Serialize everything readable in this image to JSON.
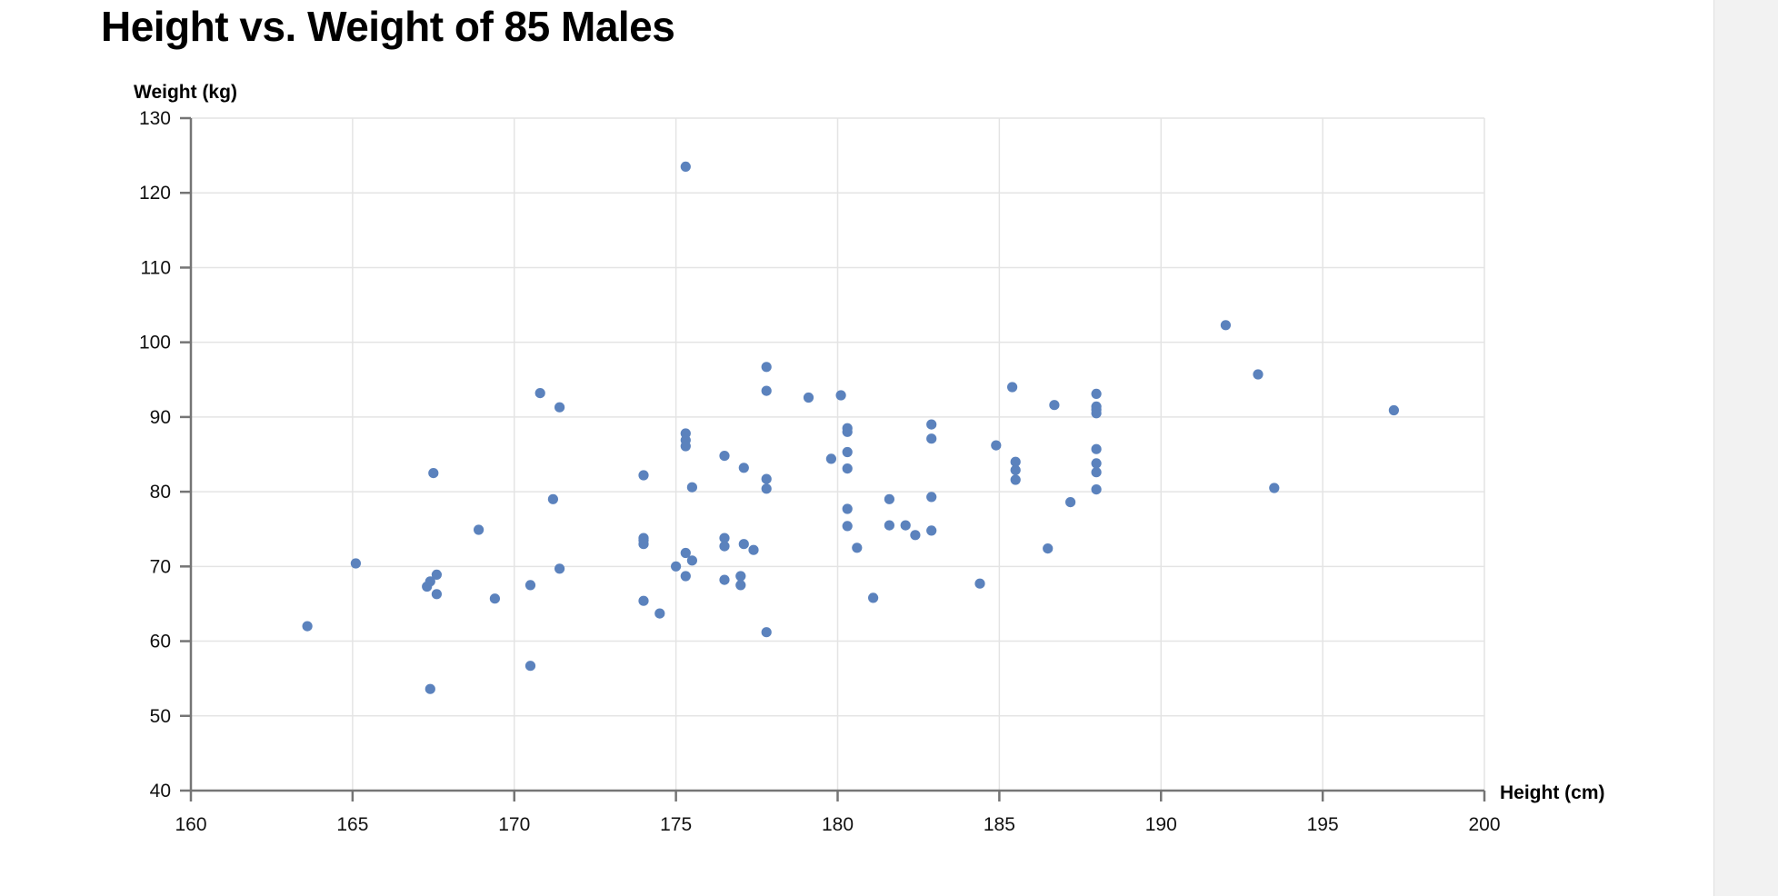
{
  "chart_data": {
    "type": "scatter",
    "title": "Height vs. Weight of 85 Males",
    "xlabel": "Height (cm)",
    "ylabel": "Weight (kg)",
    "xlim": [
      160,
      200
    ],
    "ylim": [
      40,
      130
    ],
    "x_ticks": [
      160,
      165,
      170,
      175,
      180,
      185,
      190,
      195,
      200
    ],
    "y_ticks": [
      40,
      50,
      60,
      70,
      80,
      90,
      100,
      110,
      120,
      130
    ],
    "grid": true,
    "legend": "none",
    "point_count": 85,
    "points": [
      [
        163.6,
        62.0
      ],
      [
        165.1,
        70.4
      ],
      [
        167.5,
        82.5
      ],
      [
        167.6,
        68.9
      ],
      [
        167.3,
        67.3
      ],
      [
        167.6,
        66.3
      ],
      [
        167.4,
        68.0
      ],
      [
        167.4,
        53.6
      ],
      [
        168.9,
        74.9
      ],
      [
        169.4,
        65.7
      ],
      [
        170.8,
        93.2
      ],
      [
        171.4,
        91.3
      ],
      [
        171.2,
        79.0
      ],
      [
        171.4,
        69.7
      ],
      [
        170.5,
        67.5
      ],
      [
        170.5,
        56.7
      ],
      [
        174.0,
        82.2
      ],
      [
        174.0,
        73.8
      ],
      [
        174.0,
        73.0
      ],
      [
        174.0,
        73.5
      ],
      [
        174.0,
        65.4
      ],
      [
        174.5,
        63.7
      ],
      [
        175.3,
        123.5
      ],
      [
        175.3,
        87.8
      ],
      [
        175.3,
        86.9
      ],
      [
        175.3,
        86.1
      ],
      [
        175.5,
        80.6
      ],
      [
        175.3,
        71.8
      ],
      [
        175.0,
        70.0
      ],
      [
        175.5,
        70.8
      ],
      [
        175.3,
        68.7
      ],
      [
        176.5,
        84.8
      ],
      [
        176.5,
        73.8
      ],
      [
        176.5,
        72.7
      ],
      [
        176.5,
        68.2
      ],
      [
        177.1,
        83.2
      ],
      [
        177.1,
        73.0
      ],
      [
        177.4,
        72.2
      ],
      [
        177.0,
        68.7
      ],
      [
        177.0,
        67.5
      ],
      [
        177.8,
        96.7
      ],
      [
        177.8,
        93.5
      ],
      [
        177.8,
        81.7
      ],
      [
        177.8,
        80.4
      ],
      [
        177.8,
        61.2
      ],
      [
        179.1,
        92.6
      ],
      [
        179.8,
        84.4
      ],
      [
        180.1,
        92.9
      ],
      [
        180.3,
        88.5
      ],
      [
        180.3,
        88.0
      ],
      [
        180.3,
        85.3
      ],
      [
        180.3,
        83.1
      ],
      [
        180.3,
        77.7
      ],
      [
        180.3,
        75.4
      ],
      [
        180.6,
        72.5
      ],
      [
        181.6,
        79.0
      ],
      [
        181.6,
        75.5
      ],
      [
        181.1,
        65.8
      ],
      [
        182.1,
        75.5
      ],
      [
        182.4,
        74.2
      ],
      [
        182.9,
        89.0
      ],
      [
        182.9,
        87.1
      ],
      [
        182.9,
        79.3
      ],
      [
        182.9,
        74.8
      ],
      [
        184.4,
        67.7
      ],
      [
        184.9,
        86.2
      ],
      [
        185.4,
        94.0
      ],
      [
        185.5,
        84.0
      ],
      [
        185.5,
        82.9
      ],
      [
        185.5,
        81.6
      ],
      [
        186.5,
        72.4
      ],
      [
        186.7,
        91.6
      ],
      [
        187.2,
        78.6
      ],
      [
        188.0,
        93.1
      ],
      [
        188.0,
        91.4
      ],
      [
        188.0,
        90.5
      ],
      [
        188.0,
        91.0
      ],
      [
        188.0,
        85.7
      ],
      [
        188.0,
        83.8
      ],
      [
        188.0,
        82.6
      ],
      [
        188.0,
        80.3
      ],
      [
        192.0,
        102.3
      ],
      [
        193.0,
        95.7
      ],
      [
        193.5,
        80.5
      ],
      [
        197.2,
        90.9
      ]
    ],
    "colors": {
      "point": "#5b82bd",
      "axis": "#757575",
      "gridline": "#e4e4e4",
      "text": "#111111"
    }
  }
}
